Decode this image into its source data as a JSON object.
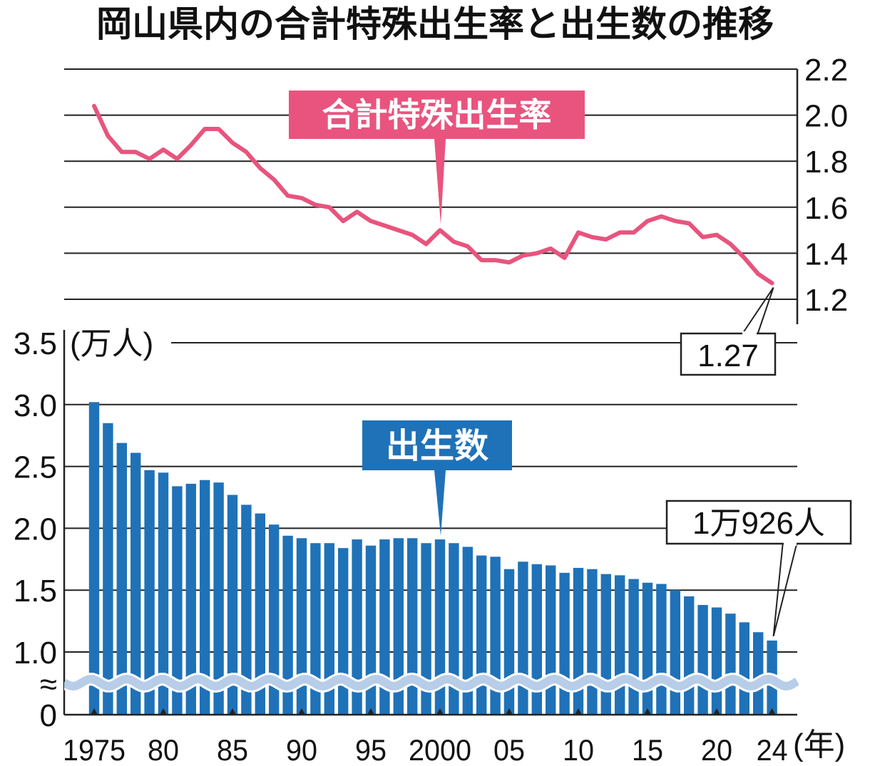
{
  "title": "岡山県内の合計特殊出生率と出生数の推移",
  "chart_data": [
    {
      "type": "line",
      "name": "合計特殊出生率",
      "x": [
        1975,
        1976,
        1977,
        1978,
        1979,
        1980,
        1981,
        1982,
        1983,
        1984,
        1985,
        1986,
        1987,
        1988,
        1989,
        1990,
        1991,
        1992,
        1993,
        1994,
        1995,
        1996,
        1997,
        1998,
        1999,
        2000,
        2001,
        2002,
        2003,
        2004,
        2005,
        2006,
        2007,
        2008,
        2009,
        2010,
        2011,
        2012,
        2013,
        2014,
        2015,
        2016,
        2017,
        2018,
        2019,
        2020,
        2021,
        2022,
        2023,
        2024
      ],
      "values": [
        2.04,
        1.91,
        1.84,
        1.84,
        1.81,
        1.85,
        1.81,
        1.87,
        1.94,
        1.94,
        1.88,
        1.84,
        1.77,
        1.72,
        1.65,
        1.64,
        1.61,
        1.6,
        1.54,
        1.58,
        1.54,
        1.52,
        1.5,
        1.48,
        1.44,
        1.5,
        1.45,
        1.43,
        1.37,
        1.37,
        1.36,
        1.39,
        1.4,
        1.42,
        1.38,
        1.49,
        1.47,
        1.46,
        1.49,
        1.49,
        1.54,
        1.56,
        1.54,
        1.53,
        1.47,
        1.48,
        1.44,
        1.38,
        1.31,
        1.27
      ],
      "ylim": [
        1.2,
        2.2
      ],
      "yticks": [
        "2.2",
        "2.0",
        "1.8",
        "1.6",
        "1.4",
        "1.2"
      ],
      "label": "合計特殊出生率",
      "annotation": "1.27",
      "color": "#e8547e",
      "grid": true
    },
    {
      "type": "bar",
      "name": "出生数",
      "x": [
        1975,
        1976,
        1977,
        1978,
        1979,
        1980,
        1981,
        1982,
        1983,
        1984,
        1985,
        1986,
        1987,
        1988,
        1989,
        1990,
        1991,
        1992,
        1993,
        1994,
        1995,
        1996,
        1997,
        1998,
        1999,
        2000,
        2001,
        2002,
        2003,
        2004,
        2005,
        2006,
        2007,
        2008,
        2009,
        2010,
        2011,
        2012,
        2013,
        2014,
        2015,
        2016,
        2017,
        2018,
        2019,
        2020,
        2021,
        2022,
        2023,
        2024
      ],
      "values": [
        3.02,
        2.85,
        2.69,
        2.61,
        2.47,
        2.45,
        2.34,
        2.36,
        2.39,
        2.37,
        2.27,
        2.19,
        2.12,
        2.03,
        1.94,
        1.92,
        1.88,
        1.88,
        1.84,
        1.91,
        1.86,
        1.91,
        1.92,
        1.92,
        1.88,
        1.91,
        1.88,
        1.85,
        1.78,
        1.77,
        1.67,
        1.73,
        1.71,
        1.7,
        1.64,
        1.68,
        1.67,
        1.63,
        1.62,
        1.59,
        1.56,
        1.55,
        1.5,
        1.45,
        1.38,
        1.36,
        1.31,
        1.24,
        1.16,
        1.0926
      ],
      "ylim": [
        0,
        3.5
      ],
      "axis_break": true,
      "yticks": [
        "3.5",
        "3.0",
        "2.5",
        "2.0",
        "1.5",
        "1.0",
        "0"
      ],
      "yunit": "(万人)",
      "label": "出生数",
      "annotation": "1万926人",
      "color": "#1f72b8",
      "grid": true
    }
  ],
  "x_axis": {
    "ticks": [
      {
        "year": 1975,
        "label": "1975"
      },
      {
        "year": 1980,
        "label": "80"
      },
      {
        "year": 1985,
        "label": "85"
      },
      {
        "year": 1990,
        "label": "90"
      },
      {
        "year": 1995,
        "label": "95"
      },
      {
        "year": 2000,
        "label": "2000"
      },
      {
        "year": 2005,
        "label": "05"
      },
      {
        "year": 2010,
        "label": "10"
      },
      {
        "year": 2015,
        "label": "15"
      },
      {
        "year": 2020,
        "label": "20"
      },
      {
        "year": 2024,
        "label": "24"
      }
    ],
    "unit": "(年)"
  },
  "break_mark": "≈"
}
